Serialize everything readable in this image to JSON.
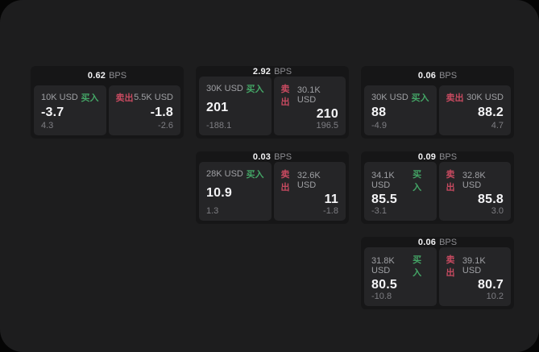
{
  "labels": {
    "bps_unit": "BPS",
    "buy": "买入",
    "sell": "卖出"
  },
  "colors": {
    "buy_accent": "#44a566",
    "sell_accent": "#c74a60",
    "window_bg": "#1d1d1e",
    "card_bg": "#161617",
    "panel_bg": "#252527"
  },
  "cards": [
    {
      "bps": "0.62",
      "buy": {
        "amount": "10K USD",
        "price": "-3.7",
        "delta": "4.3"
      },
      "sell": {
        "amount": "5.5K USD",
        "price": "-1.8",
        "delta": "-2.6"
      }
    },
    {
      "bps": "2.92",
      "buy": {
        "amount": "30K USD",
        "price": "201",
        "delta": "-188.1"
      },
      "sell": {
        "amount": "30.1K USD",
        "price": "210",
        "delta": "196.5"
      }
    },
    {
      "bps": "0.06",
      "buy": {
        "amount": "30K USD",
        "price": "88",
        "delta": "-4.9"
      },
      "sell": {
        "amount": "30K USD",
        "price": "88.2",
        "delta": "4.7"
      }
    },
    {
      "bps": "0.03",
      "buy": {
        "amount": "28K USD",
        "price": "10.9",
        "delta": "1.3"
      },
      "sell": {
        "amount": "32.6K USD",
        "price": "11",
        "delta": "-1.8"
      }
    },
    {
      "bps": "0.09",
      "buy": {
        "amount": "34.1K USD",
        "price": "85.5",
        "delta": "-3.1"
      },
      "sell": {
        "amount": "32.8K USD",
        "price": "85.8",
        "delta": "3.0"
      }
    },
    {
      "bps": "0.06",
      "buy": {
        "amount": "31.8K USD",
        "price": "80.5",
        "delta": "-10.8"
      },
      "sell": {
        "amount": "39.1K USD",
        "price": "80.7",
        "delta": "10.2"
      }
    }
  ]
}
